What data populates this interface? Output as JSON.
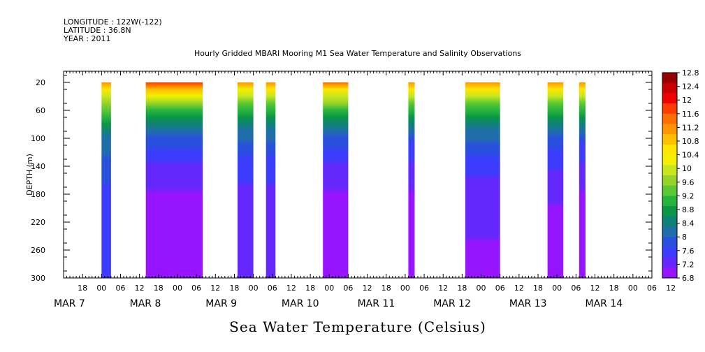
{
  "header": {
    "longitude": "LONGITUDE : 122W(-122)",
    "latitude": "LATITUDE : 36.8N",
    "year": "YEAR : 2011"
  },
  "chart_data": {
    "type": "heatmap",
    "title": "Hourly Gridded MBARI Mooring M1 Sea Water Temperature and Salinity Observations",
    "xlabel": "",
    "ylabel": "DEPTH (m)",
    "colorbar_title": "Sea Water Temperature (Celsius)",
    "ylim": [
      300,
      4
    ],
    "y_ticks": [
      20,
      60,
      100,
      140,
      180,
      220,
      260,
      300
    ],
    "x_range_hours": [
      -12,
      174
    ],
    "x_origin": "MAR 7 00",
    "x_hour_tick_labels": [
      "18",
      "00",
      "06",
      "12",
      "18",
      "00",
      "06",
      "12",
      "18",
      "00",
      "06",
      "12",
      "18",
      "00",
      "06",
      "12",
      "18",
      "00",
      "06",
      "12",
      "18",
      "00",
      "06",
      "12",
      "18",
      "00",
      "06",
      "12",
      "18",
      "00",
      "06",
      "12"
    ],
    "x_day_labels": [
      {
        "label": "MAR  7",
        "hour": -12
      },
      {
        "label": "MAR  8",
        "hour": 12
      },
      {
        "label": "MAR  9",
        "hour": 36
      },
      {
        "label": "MAR 10",
        "hour": 60
      },
      {
        "label": "MAR 11",
        "hour": 84
      },
      {
        "label": "MAR 12",
        "hour": 108
      },
      {
        "label": "MAR 13",
        "hour": 132
      },
      {
        "label": "MAR 14",
        "hour": 156
      }
    ],
    "colorbar_levels": [
      "12.8",
      "12.4",
      "12",
      "11.6",
      "11.2",
      "10.8",
      "10.4",
      "10",
      "9.6",
      "9.2",
      "8.8",
      "8.4",
      "8",
      "7.6",
      "7.2",
      "6.8"
    ],
    "colors": [
      "#960000",
      "#c80000",
      "#f00000",
      "#ff3c00",
      "#ff6e00",
      "#ff9600",
      "#ffbe00",
      "#ffe600",
      "#f0f000",
      "#c8e61e",
      "#96d228",
      "#5ac832",
      "#28b43c",
      "#0a9646",
      "#0f8278",
      "#1e6eaa",
      "#2850dc",
      "#3c3cff",
      "#6428ff",
      "#9614ff",
      "#c800ff"
    ],
    "data_segments": [
      {
        "start_hour": 0,
        "end_hour": 3,
        "surface_temp": 11.3,
        "bottom_temp": 7.6
      },
      {
        "start_hour": 14,
        "end_hour": 32,
        "surface_temp": 11.8,
        "bottom_temp": 7.0
      },
      {
        "start_hour": 43,
        "end_hour": 48,
        "surface_temp": 11.2,
        "bottom_temp": 7.3
      },
      {
        "start_hour": 52,
        "end_hour": 55,
        "surface_temp": 11.3,
        "bottom_temp": 7.3
      },
      {
        "start_hour": 70,
        "end_hour": 78,
        "surface_temp": 11.6,
        "bottom_temp": 7.0
      },
      {
        "start_hour": 97,
        "end_hour": 99,
        "surface_temp": 11.4,
        "bottom_temp": 7.0
      },
      {
        "start_hour": 115,
        "end_hour": 126,
        "surface_temp": 11.4,
        "bottom_temp": 7.2
      },
      {
        "start_hour": 141,
        "end_hour": 146,
        "surface_temp": 11.4,
        "bottom_temp": 7.1
      },
      {
        "start_hour": 151,
        "end_hour": 153,
        "surface_temp": 11.4,
        "bottom_temp": 7.0
      }
    ]
  }
}
